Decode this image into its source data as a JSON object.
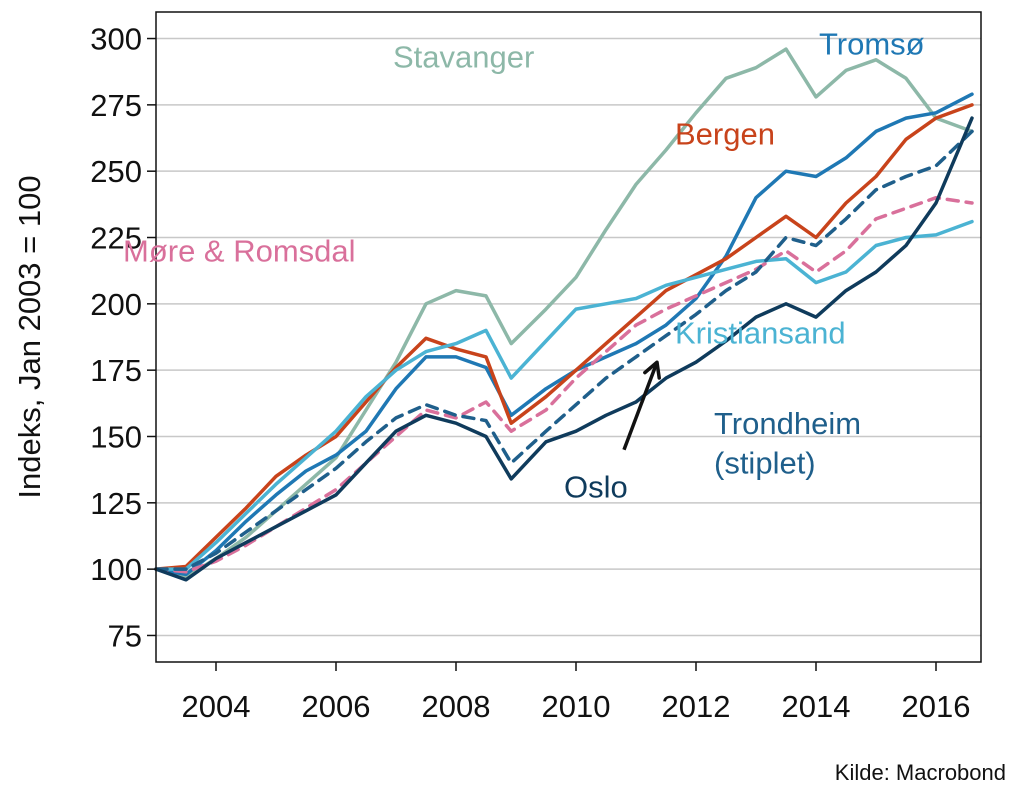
{
  "chart_data": {
    "type": "line",
    "ylabel": "Indeks, Jan 2003 = 100",
    "source": "Kilde: Macrobond",
    "xlim": [
      2003.0,
      2016.75
    ],
    "ylim": [
      65,
      310
    ],
    "grid": true,
    "x_ticks": [
      2004,
      2006,
      2008,
      2010,
      2012,
      2014,
      2016
    ],
    "y_ticks": [
      75,
      100,
      125,
      150,
      175,
      200,
      225,
      250,
      275,
      300
    ],
    "series": [
      {
        "name": "Stavanger",
        "color": "#8db8a8",
        "dashed": false,
        "x": [
          2003.0,
          2003.5,
          2004.0,
          2004.5,
          2005.0,
          2005.5,
          2006.0,
          2006.5,
          2007.0,
          2007.5,
          2008.0,
          2008.5,
          2008.92,
          2009.5,
          2010.0,
          2010.5,
          2011.0,
          2011.5,
          2012.0,
          2012.5,
          2013.0,
          2013.5,
          2014.0,
          2014.5,
          2015.0,
          2015.5,
          2016.0,
          2016.6
        ],
        "y": [
          100,
          97,
          104,
          112,
          122,
          132,
          142,
          160,
          178,
          200,
          205,
          203,
          185,
          198,
          210,
          228,
          245,
          258,
          272,
          285,
          289,
          296,
          278,
          288,
          292,
          285,
          270,
          265
        ]
      },
      {
        "name": "Tromsø",
        "color": "#1f78b4",
        "dashed": false,
        "x": [
          2003.0,
          2003.5,
          2004.0,
          2004.5,
          2005.0,
          2005.5,
          2006.0,
          2006.5,
          2007.0,
          2007.5,
          2008.0,
          2008.5,
          2008.92,
          2009.5,
          2010.0,
          2010.5,
          2011.0,
          2011.5,
          2012.0,
          2012.5,
          2013.0,
          2013.5,
          2014.0,
          2014.5,
          2015.0,
          2015.5,
          2016.0,
          2016.6
        ],
        "y": [
          100,
          98,
          107,
          118,
          128,
          137,
          143,
          152,
          168,
          180,
          180,
          176,
          158,
          168,
          175,
          180,
          185,
          192,
          202,
          218,
          240,
          250,
          248,
          255,
          265,
          270,
          272,
          279
        ]
      },
      {
        "name": "Bergen",
        "color": "#c8431b",
        "dashed": false,
        "x": [
          2003.0,
          2003.5,
          2004.0,
          2004.5,
          2005.0,
          2005.5,
          2006.0,
          2006.5,
          2007.0,
          2007.5,
          2008.0,
          2008.5,
          2008.92,
          2009.5,
          2010.0,
          2010.5,
          2011.0,
          2011.5,
          2012.0,
          2012.5,
          2013.0,
          2013.5,
          2014.0,
          2014.5,
          2015.0,
          2015.5,
          2016.0,
          2016.6
        ],
        "y": [
          100,
          101,
          112,
          123,
          135,
          143,
          150,
          163,
          176,
          187,
          183,
          180,
          155,
          165,
          175,
          185,
          195,
          205,
          211,
          217,
          225,
          233,
          225,
          238,
          248,
          262,
          270,
          275
        ]
      },
      {
        "name": "Møre & Romsdal",
        "color": "#d9709b",
        "dashed": true,
        "x": [
          2003.0,
          2003.5,
          2004.0,
          2004.5,
          2005.0,
          2005.5,
          2006.0,
          2006.5,
          2007.0,
          2007.5,
          2008.0,
          2008.5,
          2008.92,
          2009.5,
          2010.0,
          2010.5,
          2011.0,
          2011.5,
          2012.0,
          2012.5,
          2013.0,
          2013.5,
          2014.0,
          2014.5,
          2015.0,
          2015.5,
          2016.0,
          2016.6
        ],
        "y": [
          100,
          99,
          103,
          109,
          116,
          123,
          130,
          140,
          150,
          160,
          157,
          163,
          152,
          160,
          172,
          182,
          192,
          198,
          203,
          208,
          213,
          220,
          212,
          220,
          232,
          236,
          240,
          238
        ]
      },
      {
        "name": "Kristiansand",
        "color": "#4bb3d3",
        "dashed": false,
        "x": [
          2003.0,
          2003.5,
          2004.0,
          2004.5,
          2005.0,
          2005.5,
          2006.0,
          2006.5,
          2007.0,
          2007.5,
          2008.0,
          2008.5,
          2008.92,
          2009.5,
          2010.0,
          2010.5,
          2011.0,
          2011.5,
          2012.0,
          2012.5,
          2013.0,
          2013.5,
          2014.0,
          2014.5,
          2015.0,
          2015.5,
          2016.0,
          2016.6
        ],
        "y": [
          100,
          100,
          110,
          121,
          132,
          142,
          152,
          165,
          175,
          182,
          185,
          190,
          172,
          186,
          198,
          200,
          202,
          207,
          210,
          213,
          216,
          217,
          208,
          212,
          222,
          225,
          226,
          231
        ]
      },
      {
        "name": "Trondheim (stiplet)",
        "color": "#1f5f8b",
        "dashed": true,
        "x": [
          2003.0,
          2003.5,
          2004.0,
          2004.5,
          2005.0,
          2005.5,
          2006.0,
          2006.5,
          2007.0,
          2007.5,
          2008.0,
          2008.5,
          2008.92,
          2009.5,
          2010.0,
          2010.5,
          2011.0,
          2011.5,
          2012.0,
          2012.5,
          2013.0,
          2013.5,
          2014.0,
          2014.5,
          2015.0,
          2015.5,
          2016.0,
          2016.6
        ],
        "y": [
          100,
          100,
          106,
          114,
          122,
          130,
          138,
          148,
          157,
          162,
          158,
          156,
          140,
          152,
          162,
          172,
          180,
          188,
          196,
          205,
          212,
          225,
          222,
          232,
          243,
          248,
          252,
          265
        ]
      },
      {
        "name": "Oslo",
        "color": "#0f3b5c",
        "dashed": false,
        "x": [
          2003.0,
          2003.5,
          2004.0,
          2004.5,
          2005.0,
          2005.5,
          2006.0,
          2006.5,
          2007.0,
          2007.5,
          2008.0,
          2008.5,
          2008.92,
          2009.5,
          2010.0,
          2010.5,
          2011.0,
          2011.5,
          2012.0,
          2012.5,
          2013.0,
          2013.5,
          2014.0,
          2014.5,
          2015.0,
          2015.5,
          2016.0,
          2016.6
        ],
        "y": [
          100,
          96,
          104,
          110,
          116,
          122,
          128,
          140,
          152,
          158,
          155,
          150,
          134,
          148,
          152,
          158,
          163,
          172,
          178,
          186,
          195,
          200,
          195,
          205,
          212,
          222,
          238,
          270
        ]
      }
    ],
    "labels": [
      {
        "text": "Stavanger",
        "color": "#8db8a8",
        "x": 2006.95,
        "y": 289
      },
      {
        "text": "Tromsø",
        "color": "#1f78b4",
        "x": 2014.05,
        "y": 294
      },
      {
        "text": "Bergen",
        "color": "#c8431b",
        "x": 2011.65,
        "y": 260
      },
      {
        "text": "Møre & Romsdal",
        "color": "#d9709b",
        "x": 2002.45,
        "y": 216
      },
      {
        "text": "Kristiansand",
        "color": "#4bb3d3",
        "x": 2011.65,
        "y": 185
      },
      {
        "text": "Trondheim",
        "color": "#1f5f8b",
        "x": 2012.3,
        "y": 151
      },
      {
        "text": "(stiplet)",
        "color": "#1f5f8b",
        "x": 2012.3,
        "y": 136
      },
      {
        "text": "Oslo",
        "color": "#0f3b5c",
        "x": 2009.8,
        "y": 127
      }
    ],
    "arrow": {
      "color": "#111111",
      "from": [
        2010.8,
        145
      ],
      "to": [
        2011.35,
        178
      ]
    }
  }
}
